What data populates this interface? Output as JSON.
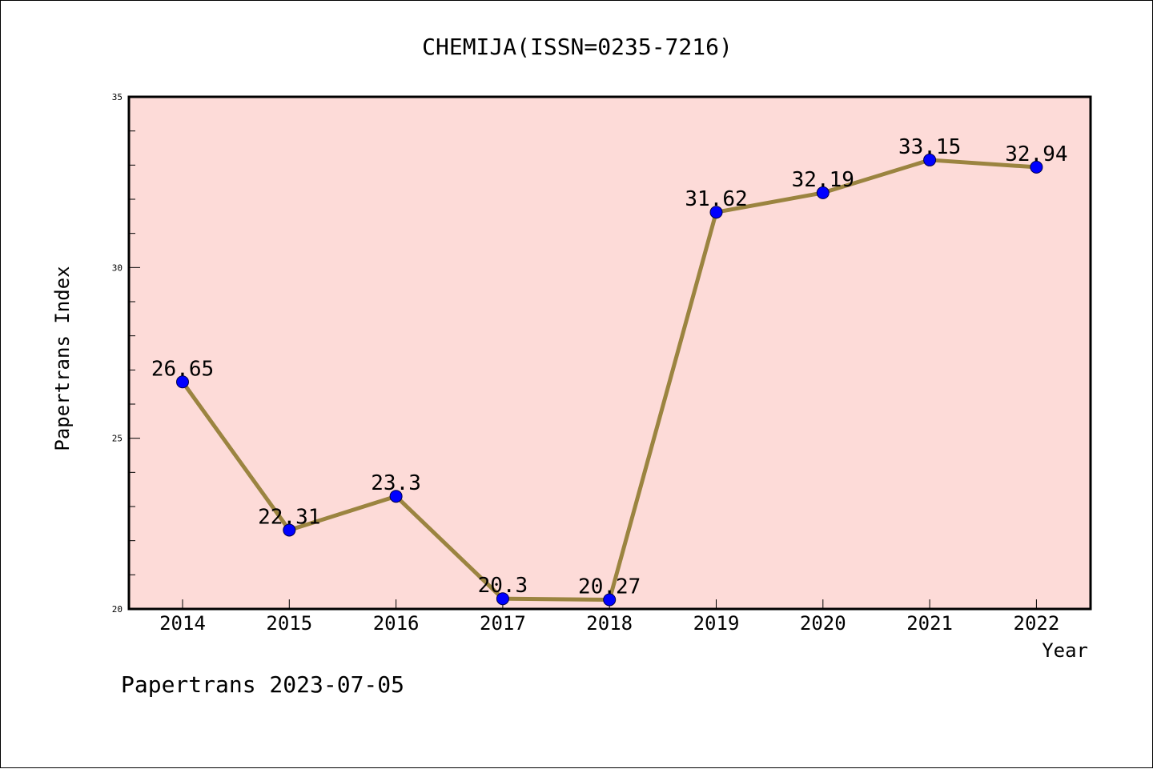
{
  "chart_data": {
    "type": "line",
    "title": "CHEMIJA(ISSN=0235-7216)",
    "xlabel": "Year",
    "ylabel": "Papertrans Index",
    "categories": [
      "2014",
      "2015",
      "2016",
      "2017",
      "2018",
      "2019",
      "2020",
      "2021",
      "2022"
    ],
    "series": [
      {
        "values": [
          26.65,
          22.31,
          23.3,
          20.3,
          20.27,
          31.62,
          32.19,
          33.15,
          32.94
        ],
        "labels": [
          "26.65",
          "22.31",
          "23.3",
          "20.3",
          "20.27",
          "31.62",
          "32.19",
          "33.15",
          "32.94"
        ]
      }
    ],
    "ylim": [
      20,
      35
    ],
    "y_major_ticks": [
      20,
      25,
      30,
      35
    ],
    "y_major_tick_labels": [
      "20",
      "25",
      "30",
      "35"
    ],
    "y_minor_step": 1,
    "grid": false,
    "plot_background": "#fddbd8",
    "line_color": "#9b8440",
    "marker_color": "#0000ff"
  },
  "footer": {
    "text": "Papertrans 2023-07-05"
  }
}
